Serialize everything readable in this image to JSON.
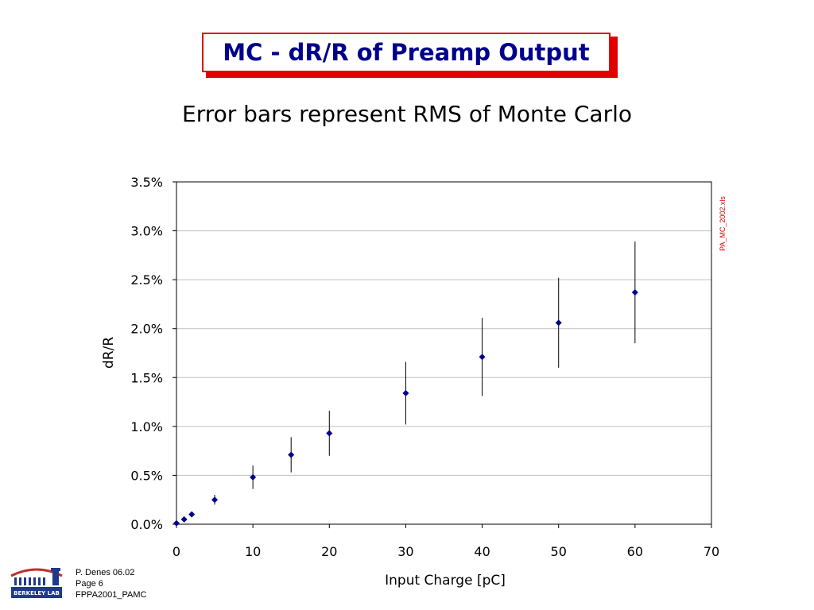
{
  "slide": {
    "title": "MC - dR/R of Preamp Output",
    "subtitle": "Error bars represent RMS of Monte Carlo",
    "filename": "PA_MC_2002.xls",
    "footer": {
      "author_date": "P. Denes 06.02",
      "page": "Page 6",
      "doc": "FPPA2001_PAMC"
    },
    "logo_text": "BERKELEY LAB"
  },
  "colors": {
    "accent": "#e00000",
    "title_text": "#00008b",
    "marker": "#00008b",
    "grid": "#c0c0c0"
  },
  "chart_data": {
    "type": "scatter",
    "title": "",
    "xlabel": "Input Charge [pC]",
    "ylabel": "dR/R",
    "xlim": [
      0,
      70
    ],
    "ylim": [
      0,
      0.035
    ],
    "x_ticks": [
      "0",
      "10",
      "20",
      "30",
      "40",
      "50",
      "60",
      "70"
    ],
    "y_ticks": [
      "0.0%",
      "0.5%",
      "1.0%",
      "1.5%",
      "2.0%",
      "2.5%",
      "3.0%",
      "3.5%"
    ],
    "grid": "horizontal",
    "legend": "none",
    "series": [
      {
        "x": [
          0,
          1,
          2,
          5,
          10,
          15,
          20,
          30,
          40,
          50,
          60
        ],
        "y": [
          0.0001,
          0.0005,
          0.001,
          0.0025,
          0.0048,
          0.0071,
          0.0093,
          0.0134,
          0.0171,
          0.0206,
          0.0237
        ],
        "error": [
          0,
          0,
          0,
          0.0005,
          0.0012,
          0.0018,
          0.0023,
          0.0032,
          0.004,
          0.0046,
          0.0052
        ]
      }
    ]
  }
}
